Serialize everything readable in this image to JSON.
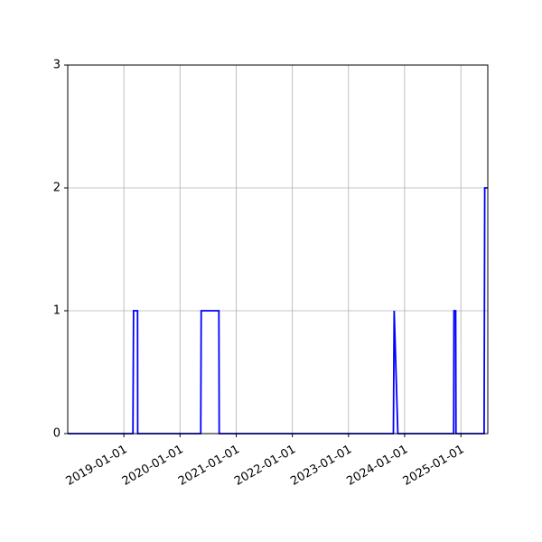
{
  "chart_data": {
    "type": "line",
    "title": "",
    "xlabel": "",
    "ylabel": "",
    "grid": true,
    "legend": "none",
    "x_axis": {
      "scale": "time",
      "range": [
        "2018-01-01",
        "2025-06-25"
      ],
      "ticks": [
        "2019-01-01",
        "2020-01-01",
        "2021-01-01",
        "2022-01-01",
        "2023-01-01",
        "2024-01-01",
        "2025-01-01"
      ]
    },
    "y_axis": {
      "range": [
        0,
        3
      ],
      "ticks": [
        "0",
        "1",
        "2",
        "3"
      ]
    },
    "series": [
      {
        "color": "#0000ff",
        "points": [
          [
            "2018-01-01",
            0
          ],
          [
            "2019-03-01",
            0
          ],
          [
            "2019-03-05",
            1
          ],
          [
            "2019-03-31",
            1
          ],
          [
            "2019-04-01",
            0
          ],
          [
            "2020-05-15",
            0
          ],
          [
            "2020-05-18",
            1
          ],
          [
            "2020-09-10",
            1
          ],
          [
            "2020-09-12",
            0
          ],
          [
            "2023-10-20",
            0
          ],
          [
            "2023-10-25",
            1
          ],
          [
            "2023-11-18",
            0
          ],
          [
            "2024-11-15",
            0
          ],
          [
            "2024-11-17",
            1
          ],
          [
            "2024-11-28",
            1
          ],
          [
            "2024-11-30",
            0
          ],
          [
            "2025-06-01",
            0
          ],
          [
            "2025-06-05",
            2
          ],
          [
            "2025-06-25",
            2
          ]
        ]
      }
    ]
  }
}
